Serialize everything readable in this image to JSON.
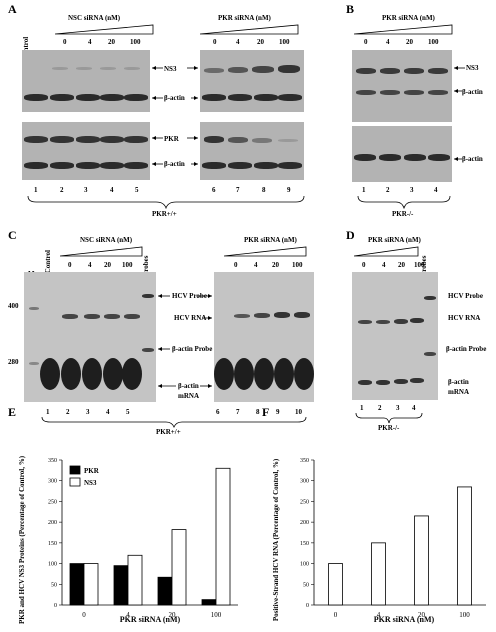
{
  "panel_labels": {
    "A": "A",
    "B": "B",
    "C": "C",
    "D": "D",
    "E": "E",
    "F": "F"
  },
  "panelA": {
    "control_label": "Control",
    "nsc_title": "NSC siRNA (nM)",
    "pkr_title": "PKR siRNA (nM)",
    "conc": [
      "0",
      "4",
      "20",
      "100"
    ],
    "labels": {
      "ns3": "NS3",
      "bactin": "β-actin",
      "pkr": "PKR"
    },
    "lanes": [
      "1",
      "2",
      "3",
      "4",
      "5",
      "6",
      "7",
      "8",
      "9"
    ],
    "genotype": "PKR+/+"
  },
  "panelB": {
    "pkr_title": "PKR siRNA (nM)",
    "conc": [
      "0",
      "4",
      "20",
      "100"
    ],
    "labels": {
      "ns3": "NS3",
      "bactin": "β-actin"
    },
    "lanes": [
      "1",
      "2",
      "3",
      "4"
    ],
    "genotype": "PKR-/-"
  },
  "panelC": {
    "marker": "M",
    "control_label": "(-) Control",
    "nsc_title": "NSC siRNA (nM)",
    "pkr_title": "PKR siRNA (nM)",
    "probes": "Probes",
    "conc": [
      "0",
      "4",
      "20",
      "100"
    ],
    "size_400": "400",
    "size_280": "280",
    "labels": {
      "hcv_probe": "HCV Probe",
      "hcv_rna": "HCV RNA",
      "bactin_probe": "β-actin Probe",
      "bactin_mrna1": "β-actin",
      "bactin_mrna2": "mRNA"
    },
    "lanes": [
      "1",
      "2",
      "3",
      "4",
      "5",
      "6",
      "7",
      "8",
      "9",
      "10"
    ],
    "genotype": "PKR+/+"
  },
  "panelD": {
    "pkr_title": "PKR siRNA (nM)",
    "probes": "Probes",
    "conc": [
      "0",
      "4",
      "20",
      "100"
    ],
    "labels": {
      "hcv_probe": "HCV Probe",
      "hcv_rna": "HCV RNA",
      "bactin_probe": "β-actin Probe",
      "bactin_mrna1": "β-actin",
      "bactin_mrna2": "mRNA"
    },
    "lanes": [
      "1",
      "2",
      "3",
      "4"
    ],
    "genotype": "PKR-/-"
  },
  "chart_data": [
    {
      "type": "bar",
      "categories": [
        "0",
        "4",
        "20",
        "100"
      ],
      "series": [
        {
          "name": "PKR",
          "values": [
            100,
            95,
            67,
            13
          ],
          "color": "#000000"
        },
        {
          "name": "NS3",
          "values": [
            100,
            120,
            182,
            330
          ],
          "color": "#ffffff"
        }
      ],
      "xlabel": "PKR siRNA (nM)",
      "ylabel": "PKR and HCV NS3 Proteins (Percentage of Control, %)",
      "ylim": [
        0,
        350
      ],
      "yticks": [
        "0",
        "50",
        "100",
        "150",
        "200",
        "250",
        "300",
        "350"
      ],
      "legend": "top-left",
      "grid": false
    },
    {
      "type": "bar",
      "categories": [
        "0",
        "4",
        "20",
        "100"
      ],
      "values": [
        100,
        150,
        215,
        285
      ],
      "xlabel": "PKR siRNA (nM)",
      "ylabel": "Positive-Strand HCV RNA (Percentage of Control, %)",
      "ylim": [
        0,
        350
      ],
      "yticks": [
        "0",
        "50",
        "100",
        "150",
        "200",
        "250",
        "300",
        "350"
      ],
      "grid": false
    }
  ]
}
